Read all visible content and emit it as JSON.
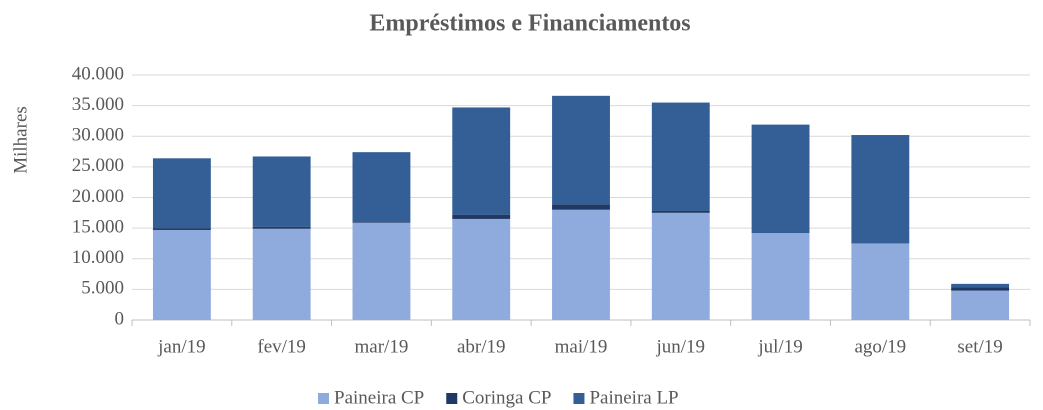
{
  "chart_data": {
    "type": "stacked_bar",
    "title": "Empréstimos e Financiamentos",
    "y_label": "Milhares",
    "categories": [
      "jan/19",
      "fev/19",
      "mar/19",
      "abr/19",
      "mai/19",
      "jun/19",
      "jul/19",
      "ago/19",
      "set/19"
    ],
    "series": [
      {
        "name": "Paineira CP",
        "color": "#8faadc",
        "values": [
          14700,
          14900,
          15900,
          16500,
          18000,
          17500,
          14200,
          12500,
          4800
        ]
      },
      {
        "name": "Coringa CP",
        "color": "#1f3864",
        "values": [
          300,
          300,
          100,
          700,
          900,
          300,
          0,
          0,
          500
        ]
      },
      {
        "name": "Paineira LP",
        "color": "#335f96",
        "values": [
          11400,
          11500,
          11400,
          17500,
          17700,
          17700,
          17700,
          17700,
          600
        ]
      }
    ],
    "ylim": [
      0,
      40000
    ],
    "yticks": [
      0,
      {
        "value": 5000,
        "label": "5.000"
      },
      {
        "value": 10000,
        "label": "10.000"
      },
      {
        "value": 15000,
        "label": "15.000"
      },
      {
        "value": 20000,
        "label": "20.000"
      },
      {
        "value": 25000,
        "label": "25.000"
      },
      {
        "value": 30000,
        "label": "30.000"
      },
      {
        "value": 35000,
        "label": "35.000"
      },
      {
        "value": 40000,
        "label": "40.000"
      }
    ],
    "grid": true,
    "legend": "bottom"
  }
}
